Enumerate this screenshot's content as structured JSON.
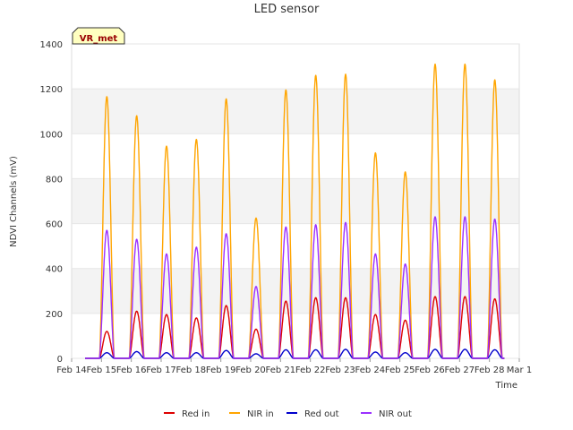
{
  "chart_data": {
    "type": "line",
    "title": "LED sensor",
    "xlabel": "Time",
    "ylabel": "NDVI Channels (mV)",
    "ylim": [
      0,
      1400
    ],
    "yticks": [
      0,
      200,
      400,
      600,
      800,
      1000,
      1200,
      1400
    ],
    "xlim_days": [
      0,
      15
    ],
    "xticks": [
      {
        "day": 0,
        "label": "Feb 14"
      },
      {
        "day": 1,
        "label": "Feb 15"
      },
      {
        "day": 2,
        "label": "Feb 16"
      },
      {
        "day": 3,
        "label": "Feb 17"
      },
      {
        "day": 4,
        "label": "Feb 18"
      },
      {
        "day": 5,
        "label": "Feb 19"
      },
      {
        "day": 6,
        "label": "Feb 20"
      },
      {
        "day": 7,
        "label": "Feb 21"
      },
      {
        "day": 8,
        "label": "Feb 22"
      },
      {
        "day": 9,
        "label": "Feb 23"
      },
      {
        "day": 10,
        "label": "Feb 24"
      },
      {
        "day": 11,
        "label": "Feb 25"
      },
      {
        "day": 12,
        "label": "Feb 26"
      },
      {
        "day": 13,
        "label": "Feb 27"
      },
      {
        "day": 14,
        "label": "Feb 28"
      },
      {
        "day": 15,
        "label": "Mar 1"
      }
    ],
    "site_label": "VR_met",
    "daily_peak_days": [
      1,
      2,
      3,
      4,
      5,
      6,
      7,
      8,
      9,
      10,
      11,
      12,
      13,
      14
    ],
    "series": [
      {
        "name": "Red in",
        "color": "#dd0000",
        "peaks": [
          120,
          210,
          195,
          180,
          235,
          130,
          255,
          270,
          270,
          195,
          170,
          275,
          275,
          265
        ]
      },
      {
        "name": "NIR in",
        "color": "#ffa500",
        "peaks": [
          1165,
          1080,
          945,
          975,
          1155,
          625,
          1195,
          1260,
          1265,
          915,
          830,
          1310,
          1310,
          1240
        ]
      },
      {
        "name": "Red out",
        "color": "#0000cc",
        "peaks": [
          25,
          30,
          25,
          25,
          35,
          20,
          38,
          38,
          40,
          28,
          25,
          40,
          40,
          38
        ]
      },
      {
        "name": "NIR out",
        "color": "#9b30ff",
        "peaks": [
          570,
          530,
          465,
          495,
          555,
          320,
          585,
          595,
          605,
          465,
          420,
          630,
          630,
          620
        ]
      }
    ]
  }
}
